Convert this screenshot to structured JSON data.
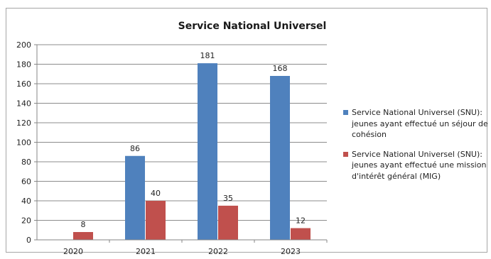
{
  "chart_data": {
    "type": "bar",
    "title": "Service National Universel",
    "categories": [
      "2020",
      "2021",
      "2022",
      "2023"
    ],
    "series": [
      {
        "name": "Service National Universel (SNU): jeunes ayant effectué un séjour de cohésion",
        "color": "#4f81bd",
        "values": [
          null,
          86,
          181,
          168
        ]
      },
      {
        "name": "Service National Universel (SNU): jeunes ayant effectué une mission d'intérêt général (MIG)",
        "color": "#c0504d",
        "values": [
          8,
          40,
          35,
          12
        ]
      }
    ],
    "y_ticks": [
      "0",
      "20",
      "40",
      "60",
      "80",
      "100",
      "120",
      "140",
      "160",
      "180",
      "200"
    ],
    "ylim": [
      0,
      200
    ],
    "grid": true,
    "legend_position": "right"
  }
}
